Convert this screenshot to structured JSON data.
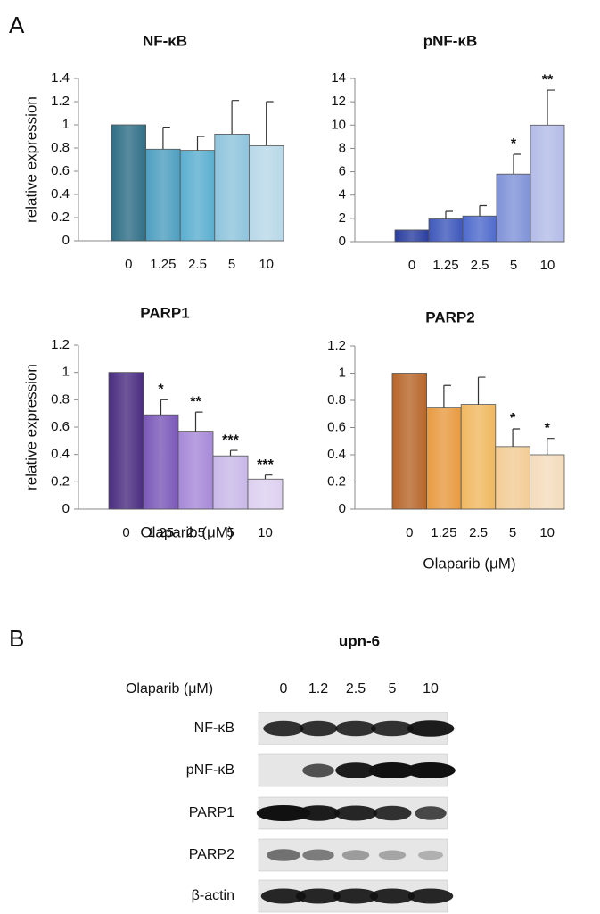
{
  "panel_labels": [
    "A",
    "B"
  ],
  "chart_data": [
    {
      "type": "bar",
      "title": "NF-κB",
      "y_label": "relative expression",
      "categories": [
        "0",
        "1.25",
        "2.5",
        "5",
        "10"
      ],
      "values": [
        1,
        0.79,
        0.78,
        0.92,
        0.82
      ],
      "errors": [
        null,
        0.19,
        0.12,
        0.29,
        0.38
      ],
      "colors": [
        "#2f6e86",
        "#4d9ec0",
        "#5aaed0",
        "#8ec4dc",
        "#b8d8e8"
      ],
      "ylim": [
        0,
        1.4
      ],
      "yticks": [
        0,
        0.2,
        0.4,
        0.6,
        0.8,
        1,
        1.2,
        1.4
      ]
    },
    {
      "type": "bar",
      "title": "pNF-κB",
      "categories": [
        "0",
        "1.25",
        "2.5",
        "5",
        "10"
      ],
      "values": [
        1,
        1.95,
        2.2,
        5.8,
        10
      ],
      "errors": [
        null,
        0.65,
        0.9,
        1.7,
        3.0
      ],
      "annotations": [
        null,
        null,
        null,
        "*",
        "**"
      ],
      "colors": [
        "#2b3e9e",
        "#3e58bb",
        "#4e6acc",
        "#7f92d8",
        "#b3bce8"
      ],
      "ylim": [
        0,
        14
      ],
      "yticks": [
        0,
        2,
        4,
        6,
        8,
        10,
        12,
        14
      ]
    },
    {
      "type": "bar",
      "title": "PARP1",
      "y_label": "relative expression",
      "x_label": "Olaparib (μM)",
      "categories": [
        "0",
        "1.25",
        "2.5",
        "5",
        "10"
      ],
      "values": [
        1,
        0.69,
        0.57,
        0.39,
        0.22
      ],
      "errors": [
        null,
        0.11,
        0.14,
        0.04,
        0.03
      ],
      "annotations": [
        null,
        "*",
        "**",
        "***",
        "***"
      ],
      "colors": [
        "#4a2c80",
        "#7a58b8",
        "#a688d8",
        "#c8b8e8",
        "#ddd0f0"
      ],
      "ylim": [
        0,
        1.2
      ],
      "yticks": [
        0,
        0.2,
        0.4,
        0.6,
        0.8,
        1,
        1.2
      ]
    },
    {
      "type": "bar",
      "title": "PARP2",
      "x_label": "Olaparib (μM)",
      "categories": [
        "0",
        "1.25",
        "2.5",
        "5",
        "10"
      ],
      "values": [
        1,
        0.75,
        0.77,
        0.46,
        0.4
      ],
      "errors": [
        null,
        0.16,
        0.2,
        0.13,
        0.12
      ],
      "annotations": [
        null,
        null,
        null,
        "*",
        "*"
      ],
      "colors": [
        "#b8662a",
        "#e89a40",
        "#f0b860",
        "#f2cc96",
        "#f4dcbc"
      ],
      "ylim": [
        0,
        1.2
      ],
      "yticks": [
        0,
        0.2,
        0.4,
        0.6,
        0.8,
        1,
        1.2
      ]
    }
  ],
  "blot": {
    "title": "upn-6",
    "treatment_label": "Olaparib  (μM)",
    "lanes": [
      "0",
      "1.2",
      "2.5",
      "5",
      "10"
    ],
    "rows": [
      "NF-κB",
      "pNF-κB",
      "PARP1",
      "PARP2",
      "β-actin"
    ]
  }
}
